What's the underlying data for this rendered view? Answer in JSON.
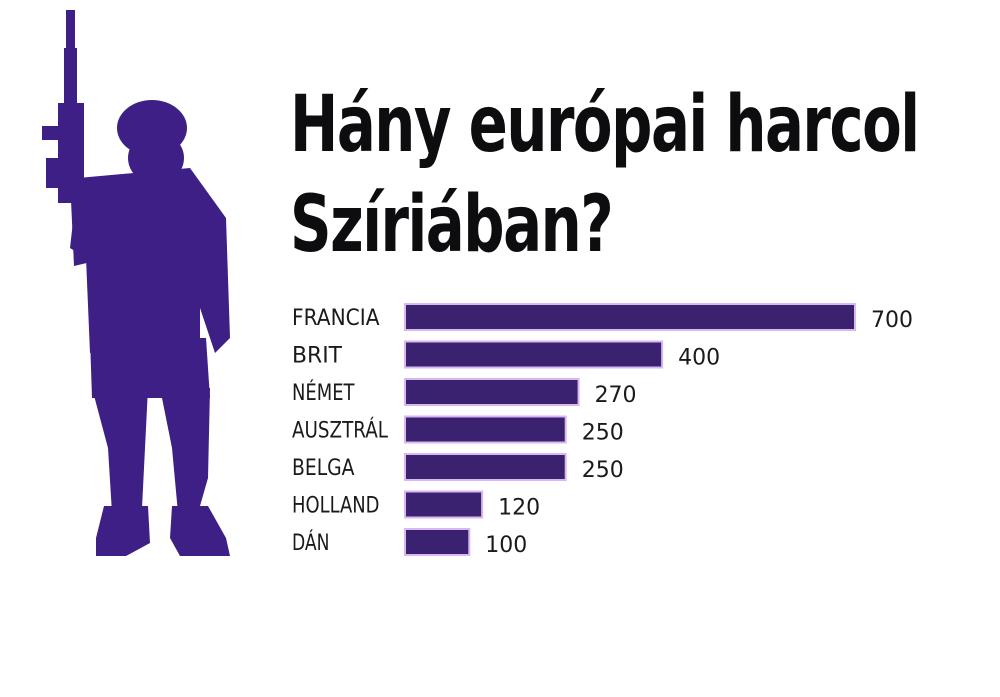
{
  "title": {
    "line1": "Hány európai harcol",
    "line2": "Szíriában?"
  },
  "colors": {
    "bar": "#3b2270",
    "bar_outline": "#d9b8ef",
    "soldier": "#3e1f86",
    "title": "#0d0d10"
  },
  "illustration": {
    "icon": "soldier-silhouette-icon"
  },
  "chart_data": {
    "type": "bar",
    "orientation": "horizontal",
    "categories": [
      "FRANCIA",
      "BRIT",
      "NÉMET",
      "AUSZTRÁL",
      "BELGA",
      "HOLLAND",
      "DÁN"
    ],
    "values": [
      700,
      400,
      270,
      250,
      250,
      120,
      100
    ],
    "title": "Hány európai harcol Szíriában?",
    "xlabel": "",
    "ylabel": "",
    "xlim": [
      0,
      700
    ],
    "grid": false,
    "legend": "none",
    "data_labels": true
  }
}
